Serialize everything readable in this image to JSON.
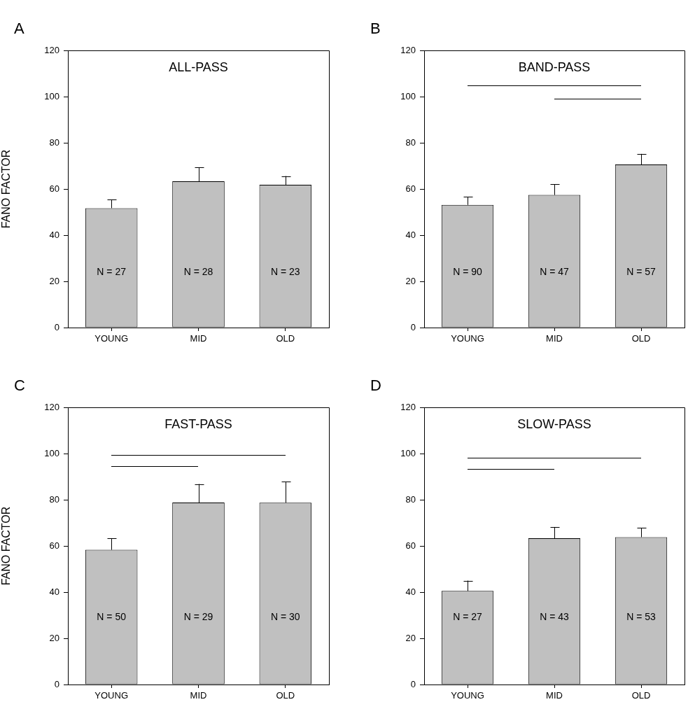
{
  "chart_data": [
    {
      "type": "bar",
      "title": "ALL-PASS",
      "ylabel": "FANO FACTOR",
      "categories": [
        "YOUNG",
        "MID",
        "OLD"
      ],
      "values": [
        51.7,
        63.3,
        61.8
      ],
      "errors": [
        [
          51.7,
          55.4
        ],
        [
          63.3,
          69.3
        ],
        [
          61.8,
          65.6
        ]
      ],
      "color": "#c0c0c0",
      "ylim": [
        0,
        120
      ],
      "yticks": [
        0,
        20,
        40,
        60,
        80,
        100,
        120
      ],
      "annotations": [
        "A",
        "N = 27",
        "N = 28",
        "N = 23"
      ]
    },
    {
      "type": "bar",
      "title": "BAND-PASS",
      "categories": [
        "YOUNG",
        "MID",
        "OLD"
      ],
      "values": [
        53.1,
        57.4,
        70.6
      ],
      "errors": [
        [
          53.1,
          56.6
        ],
        [
          57.4,
          62.1
        ],
        [
          70.6,
          75.2
        ]
      ],
      "color": "#c0c0c0",
      "ylim": [
        0,
        120
      ],
      "yticks": [
        0,
        20,
        40,
        60,
        80,
        100,
        120
      ],
      "annotations": [
        "B",
        "N = 90",
        "N = 47",
        "N = 57"
      ]
    },
    {
      "type": "bar",
      "title": "FAST-PASS",
      "ylabel": "FANO FACTOR",
      "categories": [
        "YOUNG",
        "MID",
        "OLD"
      ],
      "values": [
        58.3,
        78.8,
        78.7
      ],
      "errors": [
        [
          58.3,
          63.2
        ],
        [
          78.8,
          86.8
        ],
        [
          78.7,
          87.8
        ]
      ],
      "color": "#c0c0c0",
      "ylim": [
        0,
        120
      ],
      "yticks": [
        0,
        20,
        40,
        60,
        80,
        100,
        120
      ],
      "annotations": [
        "C",
        "N = 50",
        "N = 29",
        "N = 30"
      ]
    },
    {
      "type": "bar",
      "title": "SLOW-PASS",
      "categories": [
        "YOUNG",
        "MID",
        "OLD"
      ],
      "values": [
        40.5,
        63.3,
        63.8
      ],
      "errors": [
        [
          40.5,
          45.0
        ],
        [
          63.3,
          68.2
        ],
        [
          63.8,
          67.8
        ]
      ],
      "color": "#c0c0c0",
      "ylim": [
        0,
        120
      ],
      "yticks": [
        0,
        20,
        40,
        60,
        80,
        100,
        120
      ],
      "annotations": [
        "D",
        "N = 27",
        "N = 43",
        "N = 53"
      ]
    }
  ]
}
